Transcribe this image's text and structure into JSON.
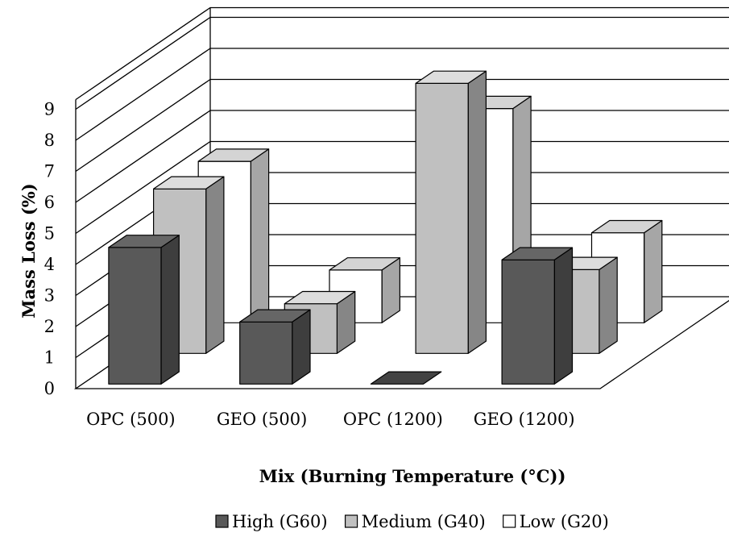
{
  "chart_data": {
    "type": "bar",
    "variant": "3d-clustered-depth",
    "title": "",
    "xlabel": "Mix (Burning Temperature (°C))",
    "ylabel": "Mass Loss (%)",
    "ylim": [
      0,
      9
    ],
    "yticks": [
      0,
      1,
      2,
      3,
      4,
      5,
      6,
      7,
      8,
      9
    ],
    "grid": true,
    "legend_position": "bottom",
    "categories": [
      "OPC (500)",
      "GEO (500)",
      "OPC (1200)",
      "GEO (1200)"
    ],
    "series": [
      {
        "name": "High (G60)",
        "values": [
          4.4,
          2.0,
          0.0,
          4.0
        ],
        "color": "#595959"
      },
      {
        "name": "Medium (G40)",
        "values": [
          5.3,
          1.6,
          8.7,
          2.7
        ],
        "color": "#c0c0c0"
      },
      {
        "name": "Low (G20)",
        "values": [
          5.2,
          1.7,
          6.9,
          2.9
        ],
        "color": "#ffffff"
      }
    ]
  }
}
